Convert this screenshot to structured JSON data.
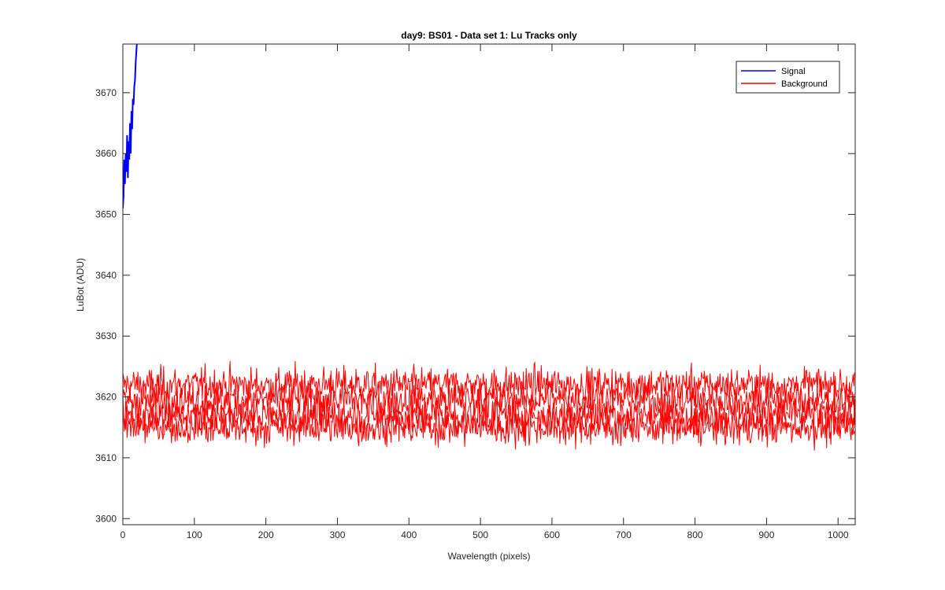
{
  "chart_data": {
    "type": "line",
    "title": "day9: BS01 - Data set 1: Lu Tracks only",
    "xlabel": "Wavelength (pixels)",
    "ylabel": "LuBot (ADU)",
    "xlim": [
      0,
      1024
    ],
    "ylim": [
      3599,
      3678
    ],
    "xticks": [
      0,
      100,
      200,
      300,
      400,
      500,
      600,
      700,
      800,
      900,
      1000
    ],
    "yticks": [
      3600,
      3610,
      3620,
      3630,
      3640,
      3650,
      3660,
      3670
    ],
    "grid": false,
    "legend": {
      "placement": "top-right",
      "entries": [
        "Signal",
        "Background"
      ]
    },
    "series": [
      {
        "name": "Signal",
        "color": "#0000ff",
        "x": [
          0,
          1,
          2,
          3,
          4,
          5,
          6,
          7,
          8,
          9,
          10,
          11,
          12,
          13,
          14,
          15,
          16,
          17,
          18,
          19,
          20
        ],
        "y": [
          3651,
          3653,
          3659,
          3655,
          3660,
          3657,
          3663,
          3656,
          3662,
          3659,
          3665,
          3660,
          3667,
          3664,
          3669,
          3668,
          3671,
          3672,
          3675,
          3677,
          3679
        ]
      },
      {
        "name": "Background",
        "color": "#ff0000",
        "bands": [
          {
            "mean": 3622,
            "noise": 2.4
          },
          {
            "mean": 3619.5,
            "noise": 2.6
          },
          {
            "mean": 3617,
            "noise": 2.6
          },
          {
            "mean": 3615,
            "noise": 2.4
          }
        ],
        "summary": {
          "min": 3609,
          "max": 3628
        }
      }
    ]
  }
}
